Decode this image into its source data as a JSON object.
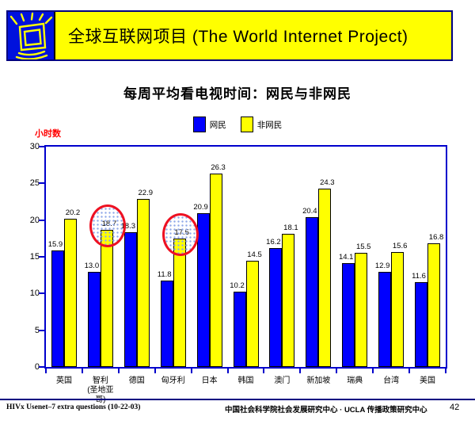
{
  "header": {
    "title": "全球互联网项目 (The World Internet Project)",
    "icon": "shining-screen-icon",
    "banner_color": "#ffff00",
    "icon_color": "#0011dd"
  },
  "chart_data": {
    "type": "bar",
    "title": "每周平均看电视时间：网民与非网民",
    "xlabel": "",
    "ylabel": "小时数",
    "ylim": [
      0,
      30
    ],
    "yticks": [
      0,
      5,
      10,
      15,
      20,
      25,
      30
    ],
    "grid": false,
    "legend_position": "top",
    "categories": [
      "英国",
      "智利\n(圣地亚哥)",
      "德国",
      "匈牙利",
      "日本",
      "韩国",
      "澳门",
      "新加坡",
      "瑞典",
      "台湾",
      "美国"
    ],
    "series": [
      {
        "name": "网民",
        "color": "#0000ff",
        "values": [
          15.9,
          13.0,
          18.3,
          11.8,
          20.9,
          10.2,
          16.2,
          20.4,
          14.1,
          12.9,
          11.6
        ]
      },
      {
        "name": "非网民",
        "color": "#ffff00",
        "values": [
          20.2,
          18.7,
          22.9,
          17.5,
          26.3,
          14.5,
          18.1,
          24.3,
          15.5,
          15.6,
          16.8
        ]
      }
    ],
    "annotations": [
      {
        "type": "circle",
        "color": "#ee1122",
        "category_index": 1,
        "series_index": 1,
        "value_circled": "18.7"
      },
      {
        "type": "circle",
        "color": "#ee1122",
        "category_index": 3,
        "series_index": 1,
        "value_circled": "17.5"
      }
    ]
  },
  "footer": {
    "left": "HIVx Usenet–7 extra questions (10-22-03)",
    "center": "中国社会科学院社会发展研究中心 · UCLA 传播政策研究中心",
    "page_number": "42"
  },
  "colors": {
    "axis_frame": "#0000cc",
    "ylabel_text": "#ff0000",
    "footer_line": "#000080",
    "annotation_red": "#ee1122"
  }
}
